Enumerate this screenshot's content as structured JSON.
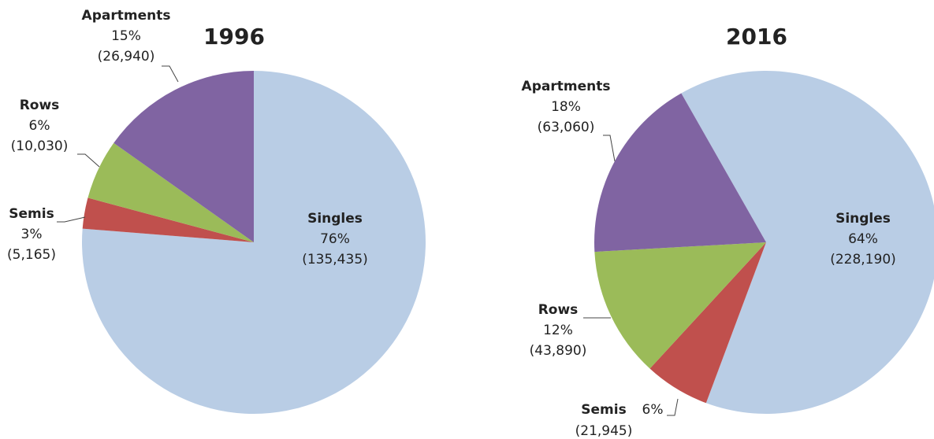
{
  "chart_data": [
    {
      "type": "pie",
      "title": "1996",
      "categories": [
        "Singles",
        "Semis",
        "Rows",
        "Apartments"
      ],
      "values": [
        135435,
        5165,
        10030,
        26940
      ],
      "value_labels": [
        "(135,435)",
        "(5,165)",
        "(10,030)",
        "(26,940)"
      ],
      "percent_labels": [
        "76%",
        "3%",
        "6%",
        "15%"
      ],
      "colors": [
        "#b9cde5",
        "#c0504d",
        "#9bbb59",
        "#8064a2"
      ]
    },
    {
      "type": "pie",
      "title": "2016",
      "categories": [
        "Singles",
        "Semis",
        "Rows",
        "Apartments"
      ],
      "values": [
        228190,
        21945,
        43890,
        63060
      ],
      "value_labels": [
        "(228,190)",
        "(21,945)",
        "(43,890)",
        "(63,060)"
      ],
      "percent_labels": [
        "64%",
        "6%",
        "12%",
        "18%"
      ],
      "colors": [
        "#b9cde5",
        "#c0504d",
        "#9bbb59",
        "#8064a2"
      ]
    }
  ]
}
